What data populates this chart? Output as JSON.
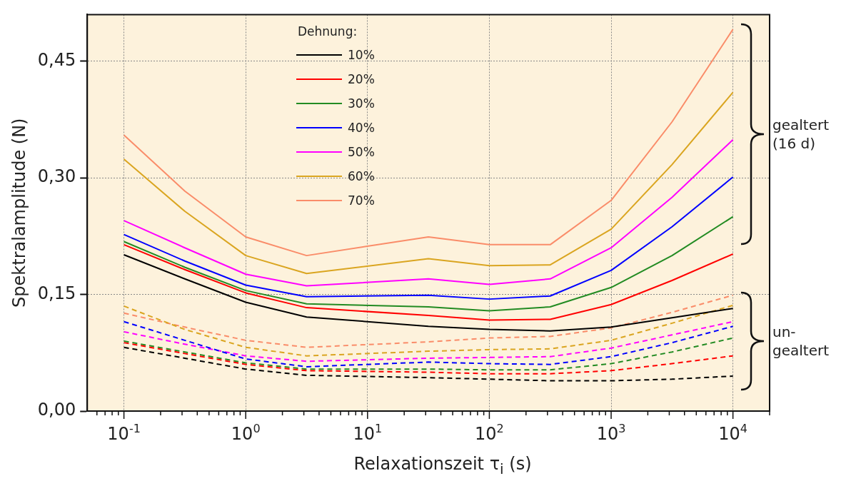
{
  "chart_data": {
    "type": "line",
    "xlabel": "Relaxationszeit τ$_{i}$ (s)",
    "ylabel": "Spektralamplitude (N)",
    "legend_title": "Dehnung:",
    "legend": "top left",
    "grid": true,
    "log": "x",
    "marker": "none",
    "x": [
      0.1,
      0.316,
      1,
      3.16,
      31.6,
      100,
      316,
      1000,
      3162,
      10000
    ],
    "xlim": [
      0.05,
      20000
    ],
    "xticks": [
      {
        "value": 0.06,
        "label": null
      },
      {
        "value": 0.07,
        "label": null
      },
      {
        "value": 0.08,
        "label": null
      },
      {
        "value": 0.09,
        "label": null
      },
      {
        "value": 0.1,
        "label": "10$^{-1}$"
      },
      {
        "value": 0.2,
        "label": null
      },
      {
        "value": 0.3,
        "label": null
      },
      {
        "value": 0.4,
        "label": null
      },
      {
        "value": 0.5,
        "label": null
      },
      {
        "value": 0.6,
        "label": null
      },
      {
        "value": 0.7,
        "label": null
      },
      {
        "value": 0.8,
        "label": null
      },
      {
        "value": 0.9,
        "label": null
      },
      {
        "value": 1,
        "label": "10$^{0}$"
      },
      {
        "value": 2,
        "label": null
      },
      {
        "value": 3,
        "label": null
      },
      {
        "value": 4,
        "label": null
      },
      {
        "value": 5,
        "label": null
      },
      {
        "value": 6,
        "label": null
      },
      {
        "value": 7,
        "label": null
      },
      {
        "value": 8,
        "label": null
      },
      {
        "value": 9,
        "label": null
      },
      {
        "value": 10,
        "label": "10$^{1}$"
      },
      {
        "value": 20,
        "label": null
      },
      {
        "value": 30,
        "label": null
      },
      {
        "value": 40,
        "label": null
      },
      {
        "value": 50,
        "label": null
      },
      {
        "value": 60,
        "label": null
      },
      {
        "value": 70,
        "label": null
      },
      {
        "value": 80,
        "label": null
      },
      {
        "value": 90,
        "label": null
      },
      {
        "value": 100,
        "label": "10$^{2}$"
      },
      {
        "value": 200,
        "label": null
      },
      {
        "value": 300,
        "label": null
      },
      {
        "value": 400,
        "label": null
      },
      {
        "value": 500,
        "label": null
      },
      {
        "value": 600,
        "label": null
      },
      {
        "value": 700,
        "label": null
      },
      {
        "value": 800,
        "label": null
      },
      {
        "value": 900,
        "label": null
      },
      {
        "value": 1000,
        "label": "10$^{3}$"
      },
      {
        "value": 2000,
        "label": null
      },
      {
        "value": 3000,
        "label": null
      },
      {
        "value": 4000,
        "label": null
      },
      {
        "value": 5000,
        "label": null
      },
      {
        "value": 6000,
        "label": null
      },
      {
        "value": 7000,
        "label": null
      },
      {
        "value": 8000,
        "label": null
      },
      {
        "value": 9000,
        "label": null
      },
      {
        "value": 10000,
        "label": "10$^{4}$"
      },
      {
        "value": 20000,
        "label": null
      }
    ],
    "ylim": [
      0,
      0.51
    ],
    "yticks": [
      {
        "value": 0,
        "label": "0,00"
      },
      {
        "value": 0.15,
        "label": "0,15"
      },
      {
        "value": 0.3,
        "label": "0,30"
      },
      {
        "value": 0.45,
        "label": "0,45"
      }
    ],
    "annotations": [
      "gealtert\n(16 d)",
      "un-\ngealtert"
    ],
    "series": [
      {
        "name": "10%",
        "color": "#000000",
        "line_style": "solid",
        "values": [
          0.201,
          0.17,
          0.14,
          0.121,
          0.109,
          0.105,
          0.103,
          0.108,
          0.12,
          0.132
        ]
      },
      {
        "name": "20%",
        "color": "#ff0000",
        "line_style": "solid",
        "values": [
          0.214,
          0.182,
          0.152,
          0.133,
          0.123,
          0.117,
          0.118,
          0.137,
          0.168,
          0.202
        ]
      },
      {
        "name": "30%",
        "color": "#228b22",
        "line_style": "solid",
        "values": [
          0.218,
          0.185,
          0.155,
          0.138,
          0.134,
          0.129,
          0.134,
          0.159,
          0.2,
          0.25
        ]
      },
      {
        "name": "40%",
        "color": "#0000ff",
        "line_style": "solid",
        "values": [
          0.227,
          0.193,
          0.162,
          0.147,
          0.149,
          0.144,
          0.148,
          0.181,
          0.237,
          0.301
        ]
      },
      {
        "name": "50%",
        "color": "#ff00ff",
        "line_style": "solid",
        "values": [
          0.245,
          0.21,
          0.176,
          0.161,
          0.17,
          0.163,
          0.17,
          0.21,
          0.275,
          0.349
        ]
      },
      {
        "name": "60%",
        "color": "#daa520",
        "line_style": "solid",
        "values": [
          0.324,
          0.257,
          0.2,
          0.177,
          0.196,
          0.187,
          0.188,
          0.234,
          0.317,
          0.41
        ]
      },
      {
        "name": "70%",
        "color": "#fa8c69",
        "line_style": "solid",
        "values": [
          0.355,
          0.283,
          0.224,
          0.2,
          0.224,
          0.214,
          0.214,
          0.271,
          0.372,
          0.491
        ]
      },
      {
        "color": "#000000",
        "line_style": "dashed",
        "values": [
          0.082,
          0.068,
          0.054,
          0.046,
          0.043,
          0.041,
          0.039,
          0.039,
          0.041,
          0.045
        ]
      },
      {
        "color": "#ff0000",
        "line_style": "dashed",
        "values": [
          0.088,
          0.074,
          0.06,
          0.052,
          0.05,
          0.048,
          0.048,
          0.052,
          0.061,
          0.071
        ]
      },
      {
        "color": "#228b22",
        "line_style": "dashed",
        "values": [
          0.09,
          0.076,
          0.062,
          0.054,
          0.054,
          0.053,
          0.053,
          0.061,
          0.076,
          0.094
        ]
      },
      {
        "color": "#0000ff",
        "line_style": "dashed",
        "values": [
          0.115,
          0.091,
          0.067,
          0.057,
          0.063,
          0.061,
          0.06,
          0.07,
          0.088,
          0.109
        ]
      },
      {
        "color": "#ff00ff",
        "line_style": "dashed",
        "values": [
          0.102,
          0.086,
          0.071,
          0.064,
          0.068,
          0.069,
          0.07,
          0.081,
          0.098,
          0.115
        ]
      },
      {
        "color": "#daa520",
        "line_style": "dashed",
        "values": [
          0.135,
          0.105,
          0.082,
          0.071,
          0.077,
          0.079,
          0.08,
          0.091,
          0.113,
          0.136
        ]
      },
      {
        "color": "#fa8c69",
        "line_style": "dashed",
        "values": [
          0.126,
          0.108,
          0.091,
          0.082,
          0.089,
          0.094,
          0.096,
          0.107,
          0.127,
          0.149
        ]
      }
    ]
  }
}
